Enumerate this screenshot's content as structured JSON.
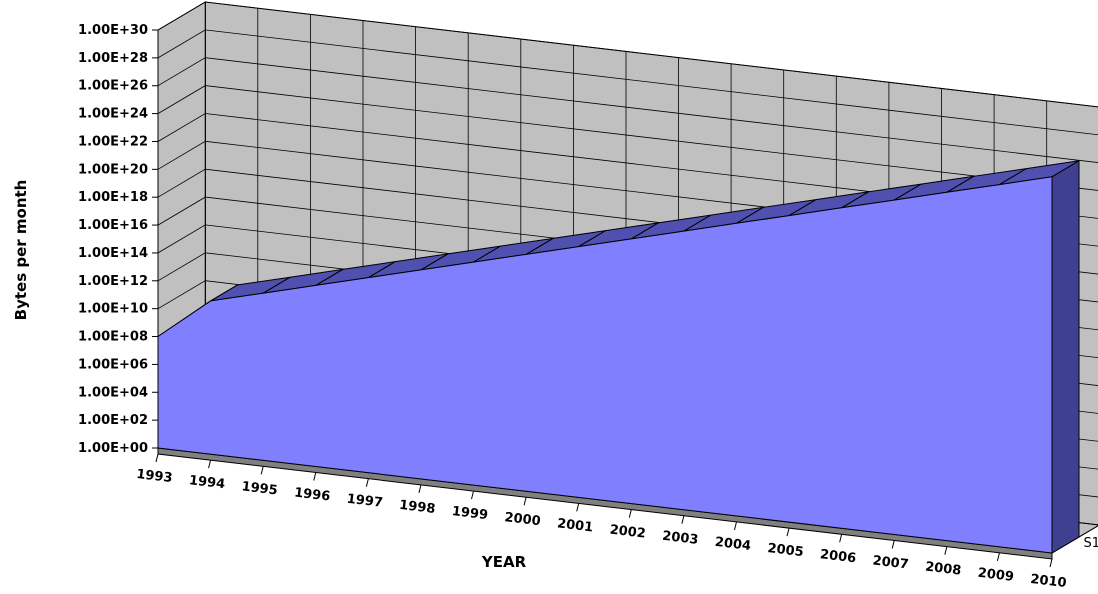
{
  "chart_data": {
    "type": "area",
    "view": "3d",
    "title": "",
    "xlabel": "YEAR",
    "ylabel": "Bytes per month",
    "categories": [
      "1993",
      "1994",
      "1995",
      "1996",
      "1997",
      "1998",
      "1999",
      "2000",
      "2001",
      "2002",
      "2003",
      "2004",
      "2005",
      "2006",
      "2007",
      "2008",
      "2009",
      "2010"
    ],
    "y_scale": "log",
    "ylim": [
      1,
      1e+30
    ],
    "y_ticks": [
      "1.00E+00",
      "1.00E+02",
      "1.00E+04",
      "1.00E+06",
      "1.00E+08",
      "1.00E+10",
      "1.00E+12",
      "1.00E+14",
      "1.00E+16",
      "1.00E+18",
      "1.00E+20",
      "1.00E+22",
      "1.00E+24",
      "1.00E+26",
      "1.00E+28",
      "1.00E+30"
    ],
    "grid": true,
    "depth_axis_labels": [
      "S1"
    ],
    "series": [
      {
        "name": "S1",
        "color": "#8080ff",
        "values": [
          100000000.0,
          100000000000.0,
          1000000000000.0,
          10000000000000.0,
          100000000000000.0,
          1000000000000000.0,
          1e+16,
          1e+17,
          1e+18,
          1e+19,
          1e+20,
          1e+21,
          1e+22,
          1e+23,
          1e+24,
          1e+25,
          1e+26,
          1e+27
        ]
      }
    ]
  }
}
